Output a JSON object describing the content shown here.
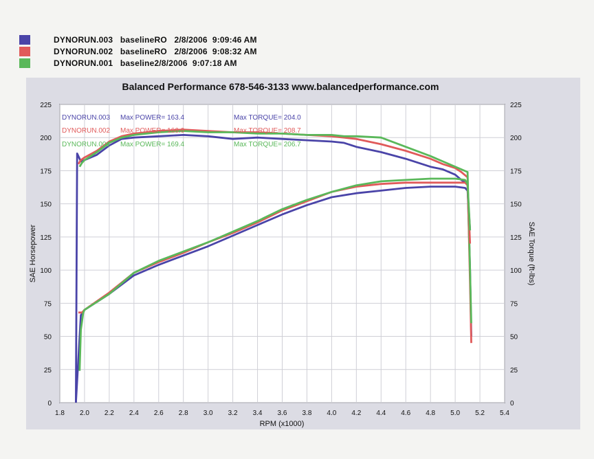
{
  "legend": [
    {
      "text": "DYNORUN.003   baselineRO   2/8/2006  9:09:46 AM",
      "color": "#4a44a8"
    },
    {
      "text": "DYNORUN.002   baselineRO   2/8/2006  9:08:32 AM",
      "color": "#e05a5a"
    },
    {
      "text": "DYNORUN.001   baseline2/8/2006  9:07:18 AM",
      "color": "#5ab85a"
    }
  ],
  "chart_data": {
    "type": "line",
    "title": "Balanced Performance 678-546-3133 www.balancedperformance.com",
    "xlabel": "RPM (x1000)",
    "ylabel": "SAE Horsepower",
    "y2label": "SAE Torque (ft-lbs)",
    "xlim": [
      1.8,
      5.4
    ],
    "ylim": [
      0,
      225
    ],
    "y2lim": [
      0,
      225
    ],
    "x_ticks": [
      "1.8",
      "2.0",
      "2.2",
      "2.4",
      "2.6",
      "2.8",
      "3.0",
      "3.2",
      "3.4",
      "3.6",
      "3.8",
      "4.0",
      "4.2",
      "4.4",
      "4.6",
      "4.8",
      "5.0",
      "5.2",
      "5.4"
    ],
    "y_ticks": [
      "0",
      "25",
      "50",
      "75",
      "100",
      "125",
      "150",
      "175",
      "200",
      "225"
    ],
    "y2_ticks": [
      "0",
      "25",
      "50",
      "75",
      "100",
      "125",
      "150",
      "175",
      "200",
      "225"
    ],
    "grid": true,
    "annotations": [
      {
        "text": "DYNORUN.003",
        "color": "#4a44a8"
      },
      {
        "text": "Max POWER= 163.4",
        "color": "#4a44a8"
      },
      {
        "text": "Max TORQUE= 204.0",
        "color": "#4a44a8"
      },
      {
        "text": "DYNORUN.002",
        "color": "#e05a5a"
      },
      {
        "text": "Max POWER= 166.6",
        "color": "#e05a5a"
      },
      {
        "text": "Max TORQUE= 208.7",
        "color": "#e05a5a"
      },
      {
        "text": "DYNORUN.001",
        "color": "#5ab85a"
      },
      {
        "text": "Max POWER= 169.4",
        "color": "#5ab85a"
      },
      {
        "text": "Max TORQUE= 206.7",
        "color": "#5ab85a"
      }
    ],
    "series": [
      {
        "name": "DYNORUN.003",
        "color": "#4a44a8",
        "kind": "torque",
        "x": [
          1.93,
          1.94,
          1.97,
          2.0,
          2.1,
          2.2,
          2.3,
          2.4,
          2.6,
          2.8,
          3.0,
          3.2,
          3.4,
          3.6,
          3.8,
          4.0,
          4.1,
          4.2,
          4.4,
          4.6,
          4.8,
          4.9,
          5.0,
          5.05,
          5.1,
          5.12,
          5.13
        ],
        "y": [
          0,
          188,
          182,
          183,
          187,
          194,
          199,
          200,
          201,
          202,
          201,
          199,
          200,
          199,
          198,
          197,
          196,
          193,
          189,
          184,
          178,
          176,
          172,
          168,
          165,
          100,
          50
        ]
      },
      {
        "name": "DYNORUN.002",
        "color": "#e05a5a",
        "kind": "torque",
        "x": [
          1.95,
          1.97,
          2.0,
          2.1,
          2.2,
          2.3,
          2.4,
          2.6,
          2.8,
          3.0,
          3.2,
          3.4,
          3.6,
          3.8,
          4.0,
          4.1,
          4.2,
          4.4,
          4.6,
          4.8,
          4.9,
          5.0,
          5.05,
          5.1,
          5.12,
          5.13
        ],
        "y": [
          180,
          183,
          185,
          190,
          197,
          201,
          203,
          205,
          206,
          205,
          204,
          204,
          203,
          202,
          201,
          200,
          199,
          195,
          190,
          184,
          180,
          177,
          174,
          170,
          90,
          45
        ]
      },
      {
        "name": "DYNORUN.001",
        "color": "#5ab85a",
        "kind": "torque",
        "x": [
          1.96,
          1.98,
          2.0,
          2.1,
          2.2,
          2.3,
          2.4,
          2.6,
          2.8,
          3.0,
          3.2,
          3.4,
          3.6,
          3.8,
          4.0,
          4.1,
          4.2,
          4.4,
          4.6,
          4.8,
          4.9,
          5.0,
          5.05,
          5.1,
          5.12,
          5.13
        ],
        "y": [
          178,
          181,
          183,
          189,
          196,
          200,
          202,
          204,
          205,
          204,
          204,
          203,
          203,
          202,
          202,
          201,
          201,
          200,
          193,
          186,
          182,
          178,
          176,
          174,
          100,
          60
        ]
      },
      {
        "name": "DYNORUN.003",
        "color": "#4a44a8",
        "kind": "power",
        "x": [
          1.93,
          1.97,
          2.0,
          2.2,
          2.4,
          2.6,
          2.8,
          3.0,
          3.2,
          3.4,
          3.6,
          3.8,
          4.0,
          4.2,
          4.4,
          4.6,
          4.8,
          5.0,
          5.08,
          5.1,
          5.12
        ],
        "y": [
          0,
          66,
          70,
          82,
          96,
          104,
          111,
          118,
          126,
          134,
          142,
          149,
          155,
          158,
          160,
          162,
          163,
          163,
          162,
          160,
          130
        ]
      },
      {
        "name": "DYNORUN.002",
        "color": "#e05a5a",
        "kind": "power",
        "x": [
          1.95,
          1.98,
          2.0,
          2.2,
          2.4,
          2.6,
          2.8,
          3.0,
          3.2,
          3.4,
          3.6,
          3.8,
          4.0,
          4.2,
          4.4,
          4.6,
          4.8,
          5.0,
          5.08,
          5.1,
          5.12
        ],
        "y": [
          68,
          68,
          70,
          83,
          98,
          106,
          113,
          121,
          128,
          136,
          145,
          152,
          159,
          163,
          165,
          166,
          166,
          166,
          166,
          164,
          120
        ]
      },
      {
        "name": "DYNORUN.001",
        "color": "#5ab85a",
        "kind": "power",
        "x": [
          1.96,
          1.97,
          1.99,
          2.0,
          2.2,
          2.4,
          2.6,
          2.8,
          3.0,
          3.2,
          3.4,
          3.6,
          3.8,
          4.0,
          4.2,
          4.4,
          4.6,
          4.8,
          5.0,
          5.08,
          5.1,
          5.12
        ],
        "y": [
          24,
          55,
          68,
          70,
          82,
          98,
          107,
          114,
          121,
          129,
          137,
          146,
          153,
          159,
          164,
          167,
          168,
          169,
          169,
          168,
          165,
          130
        ]
      }
    ]
  }
}
